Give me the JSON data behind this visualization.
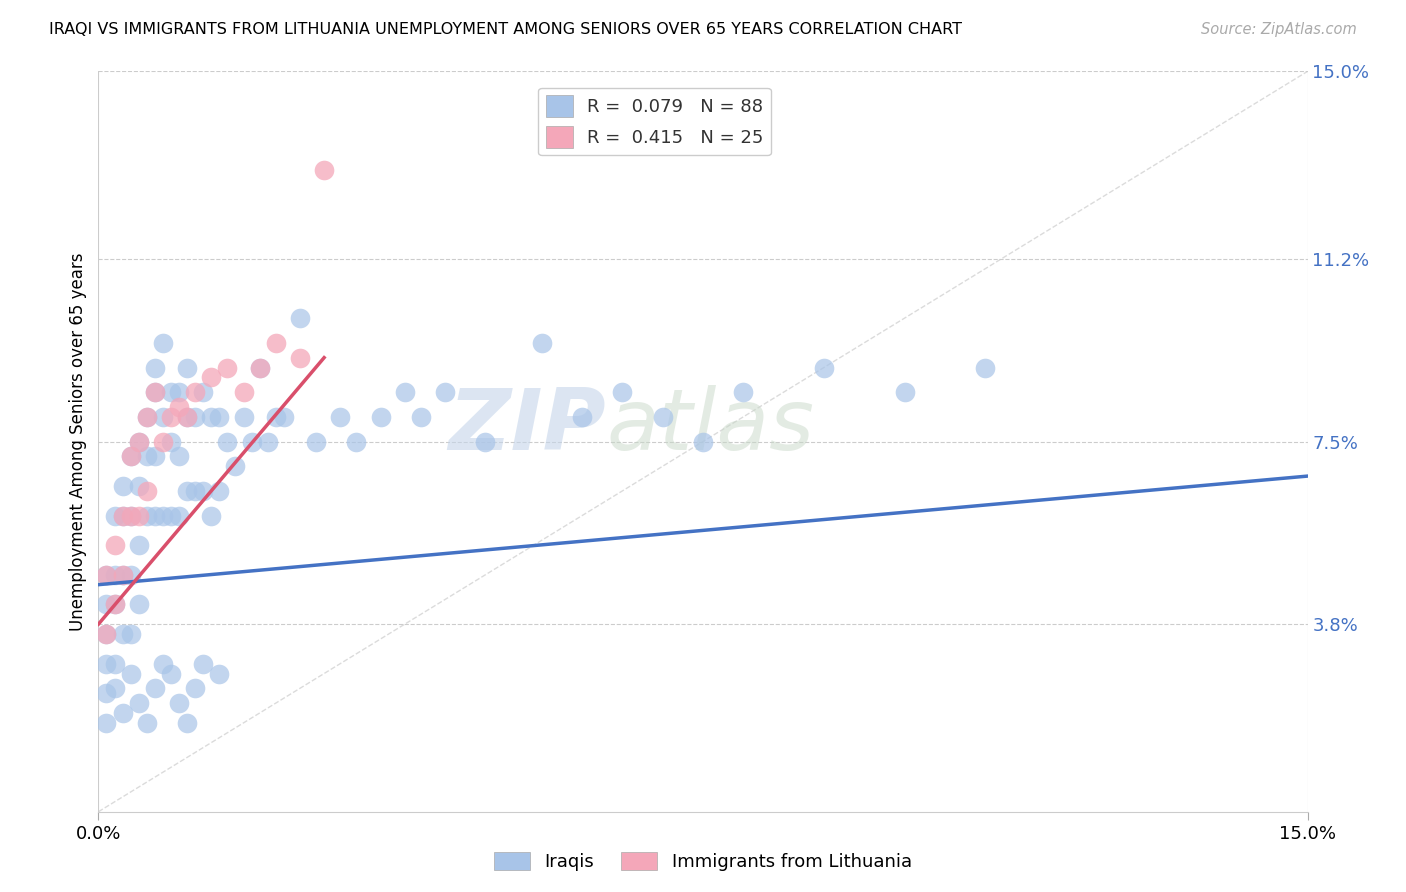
{
  "title": "IRAQI VS IMMIGRANTS FROM LITHUANIA UNEMPLOYMENT AMONG SENIORS OVER 65 YEARS CORRELATION CHART",
  "source": "Source: ZipAtlas.com",
  "ylabel": "Unemployment Among Seniors over 65 years",
  "xlim": [
    0.0,
    0.15
  ],
  "ylim": [
    0.0,
    0.15
  ],
  "ytick_labels_right": [
    "15.0%",
    "11.2%",
    "7.5%",
    "3.8%"
  ],
  "ytick_values_right": [
    0.15,
    0.112,
    0.075,
    0.038
  ],
  "iraqis_color": "#a8c4e8",
  "lithuania_color": "#f4a7b9",
  "diagonal_line_color": "#cccccc",
  "iraqis_trend_color": "#4472c4",
  "lithuania_trend_color": "#d94f6b",
  "background_color": "#ffffff",
  "watermark_zip": "ZIP",
  "watermark_atlas": "atlas",
  "iraqis_x": [
    0.001,
    0.001,
    0.001,
    0.001,
    0.001,
    0.001,
    0.002,
    0.002,
    0.002,
    0.002,
    0.003,
    0.003,
    0.003,
    0.003,
    0.004,
    0.004,
    0.004,
    0.004,
    0.005,
    0.005,
    0.005,
    0.005,
    0.006,
    0.006,
    0.006,
    0.007,
    0.007,
    0.007,
    0.007,
    0.008,
    0.008,
    0.008,
    0.009,
    0.009,
    0.009,
    0.01,
    0.01,
    0.01,
    0.011,
    0.011,
    0.011,
    0.012,
    0.012,
    0.013,
    0.013,
    0.014,
    0.014,
    0.015,
    0.015,
    0.016,
    0.017,
    0.018,
    0.019,
    0.02,
    0.021,
    0.022,
    0.023,
    0.025,
    0.027,
    0.03,
    0.032,
    0.035,
    0.038,
    0.04,
    0.043,
    0.048,
    0.055,
    0.06,
    0.065,
    0.07,
    0.075,
    0.08,
    0.09,
    0.1,
    0.11,
    0.002,
    0.003,
    0.004,
    0.005,
    0.006,
    0.007,
    0.008,
    0.009,
    0.01,
    0.011,
    0.012,
    0.013,
    0.015
  ],
  "iraqis_y": [
    0.048,
    0.042,
    0.036,
    0.03,
    0.024,
    0.018,
    0.06,
    0.048,
    0.042,
    0.03,
    0.066,
    0.06,
    0.048,
    0.036,
    0.072,
    0.06,
    0.048,
    0.036,
    0.075,
    0.066,
    0.054,
    0.042,
    0.08,
    0.072,
    0.06,
    0.09,
    0.085,
    0.072,
    0.06,
    0.095,
    0.08,
    0.06,
    0.085,
    0.075,
    0.06,
    0.085,
    0.072,
    0.06,
    0.09,
    0.08,
    0.065,
    0.08,
    0.065,
    0.085,
    0.065,
    0.08,
    0.06,
    0.08,
    0.065,
    0.075,
    0.07,
    0.08,
    0.075,
    0.09,
    0.075,
    0.08,
    0.08,
    0.1,
    0.075,
    0.08,
    0.075,
    0.08,
    0.085,
    0.08,
    0.085,
    0.075,
    0.095,
    0.08,
    0.085,
    0.08,
    0.075,
    0.085,
    0.09,
    0.085,
    0.09,
    0.025,
    0.02,
    0.028,
    0.022,
    0.018,
    0.025,
    0.03,
    0.028,
    0.022,
    0.018,
    0.025,
    0.03,
    0.028
  ],
  "lithuania_x": [
    0.001,
    0.001,
    0.002,
    0.002,
    0.003,
    0.003,
    0.004,
    0.004,
    0.005,
    0.005,
    0.006,
    0.006,
    0.007,
    0.008,
    0.009,
    0.01,
    0.011,
    0.012,
    0.014,
    0.016,
    0.018,
    0.02,
    0.022,
    0.025,
    0.028
  ],
  "lithuania_y": [
    0.048,
    0.036,
    0.054,
    0.042,
    0.06,
    0.048,
    0.072,
    0.06,
    0.075,
    0.06,
    0.08,
    0.065,
    0.085,
    0.075,
    0.08,
    0.082,
    0.08,
    0.085,
    0.088,
    0.09,
    0.085,
    0.09,
    0.095,
    0.092,
    0.13
  ],
  "iraqis_trend_x": [
    0.0,
    0.15
  ],
  "iraqis_trend_y": [
    0.046,
    0.068
  ],
  "lithuania_trend_x": [
    0.0,
    0.028
  ],
  "lithuania_trend_y": [
    0.038,
    0.092
  ]
}
